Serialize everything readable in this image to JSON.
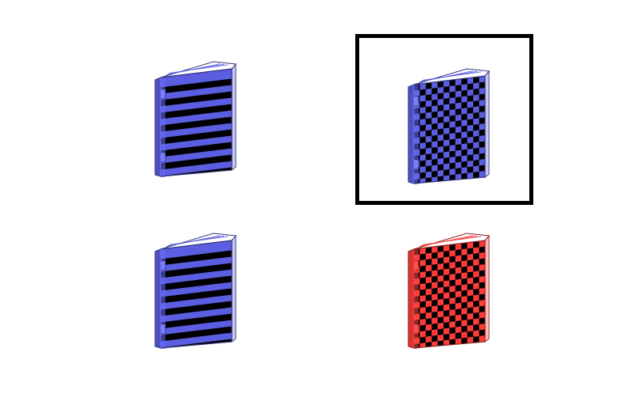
{
  "selected_index": 1,
  "cards": [
    {
      "name": "book-blue-stripes-top-left",
      "pattern": "stripes",
      "color": "#5b5ee0",
      "pages": "#ffffff"
    },
    {
      "name": "book-blue-checker-top-right",
      "pattern": "checker",
      "color": "#5b5ee0",
      "pages": "#ffffff"
    },
    {
      "name": "book-blue-stripes-bottom-left",
      "pattern": "stripes",
      "color": "#5b5ee0",
      "pages": "#ffffff"
    },
    {
      "name": "book-red-checker-bottom-right",
      "pattern": "checker",
      "color": "#ff3b3b",
      "pages": "#ffffff"
    }
  ],
  "selection_color": "#000000"
}
